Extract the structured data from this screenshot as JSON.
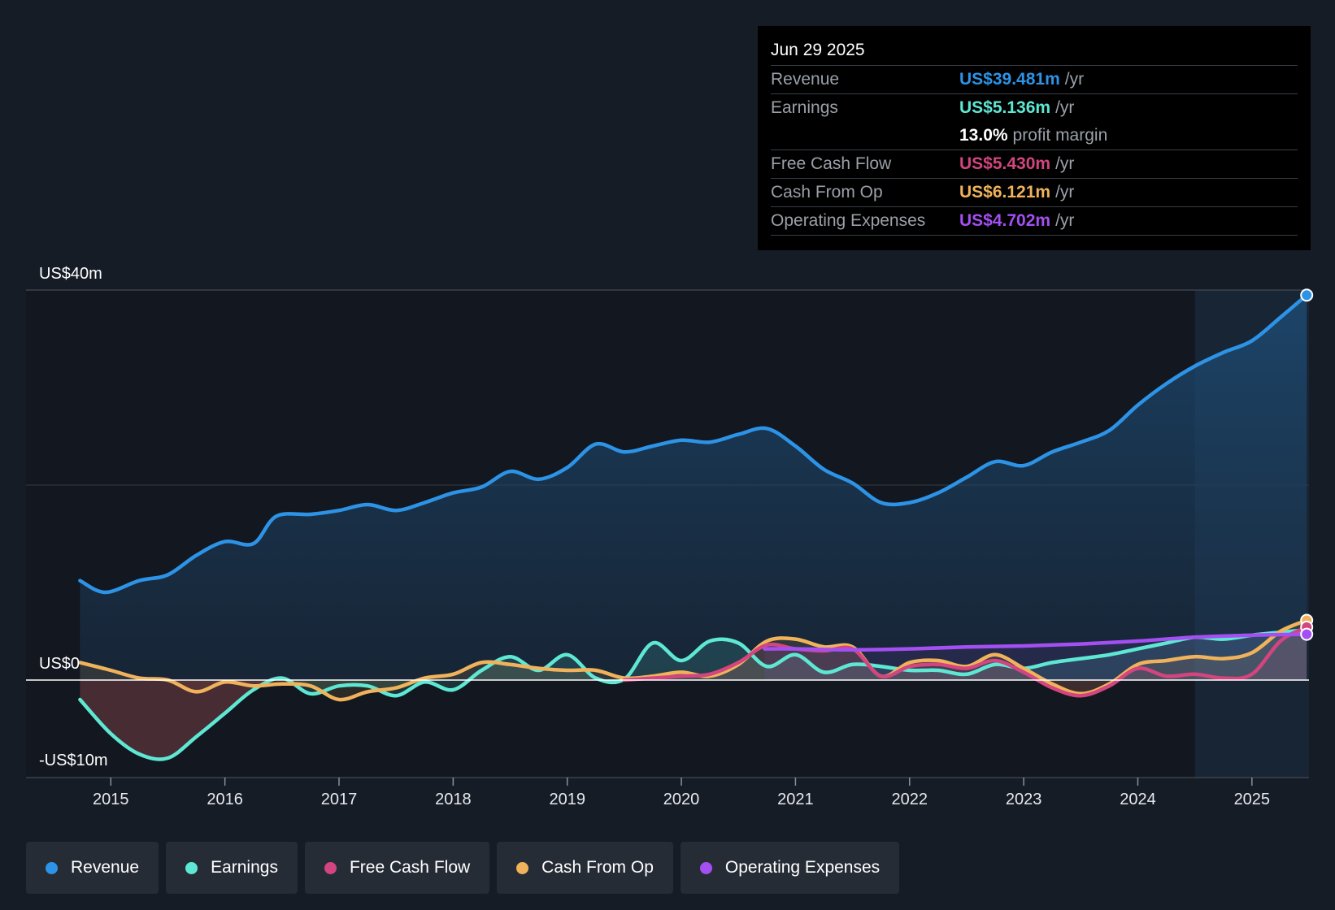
{
  "tooltip": {
    "date": "Jun 29 2025",
    "rows": {
      "revenue": {
        "label": "Revenue",
        "value": "US$39.481m",
        "unit": "/yr",
        "color": "#2d93e6"
      },
      "earnings": {
        "label": "Earnings",
        "value": "US$5.136m",
        "unit": "/yr",
        "color": "#5ee8d4"
      },
      "margin": {
        "value": "13.0%",
        "unit": "profit margin"
      },
      "fcf": {
        "label": "Free Cash Flow",
        "value": "US$5.430m",
        "unit": "/yr",
        "color": "#d2457f"
      },
      "cfo": {
        "label": "Cash From Op",
        "value": "US$6.121m",
        "unit": "/yr",
        "color": "#f0b35b"
      },
      "opex": {
        "label": "Operating Expenses",
        "value": "US$4.702m",
        "unit": "/yr",
        "color": "#a44ff2"
      }
    }
  },
  "legend": [
    {
      "label": "Revenue",
      "color": "#2d93e6"
    },
    {
      "label": "Earnings",
      "color": "#5ee8d4"
    },
    {
      "label": "Free Cash Flow",
      "color": "#d2457f"
    },
    {
      "label": "Cash From Op",
      "color": "#f0b35b"
    },
    {
      "label": "Operating Expenses",
      "color": "#a44ff2"
    }
  ],
  "chart_data": {
    "type": "line",
    "title": "",
    "y_tick_labels": [
      "US$40m",
      "US$0",
      "-US$10m"
    ],
    "ylim": [
      -10,
      40
    ],
    "xlim": [
      2014.72,
      2025.5
    ],
    "x_tick_labels": [
      "2015",
      "2016",
      "2017",
      "2018",
      "2019",
      "2020",
      "2021",
      "2022",
      "2023",
      "2024",
      "2025"
    ],
    "x_ticks": [
      2015,
      2016,
      2017,
      2018,
      2019,
      2020,
      2021,
      2022,
      2023,
      2024,
      2025
    ],
    "forecast_start": 2024.5,
    "grid": true,
    "legend_position": "bottom",
    "series": [
      {
        "name": "Revenue",
        "color": "#2d93e6",
        "points": [
          [
            2014.73,
            10.2
          ],
          [
            2014.95,
            9.0
          ],
          [
            2015.25,
            10.2
          ],
          [
            2015.5,
            10.8
          ],
          [
            2015.75,
            12.8
          ],
          [
            2016.0,
            14.2
          ],
          [
            2016.25,
            14.0
          ],
          [
            2016.45,
            16.8
          ],
          [
            2016.75,
            17.0
          ],
          [
            2017.0,
            17.4
          ],
          [
            2017.25,
            18.0
          ],
          [
            2017.5,
            17.4
          ],
          [
            2017.75,
            18.2
          ],
          [
            2018.0,
            19.2
          ],
          [
            2018.25,
            19.8
          ],
          [
            2018.5,
            21.4
          ],
          [
            2018.75,
            20.6
          ],
          [
            2019.0,
            21.8
          ],
          [
            2019.25,
            24.2
          ],
          [
            2019.5,
            23.4
          ],
          [
            2019.75,
            24.0
          ],
          [
            2020.0,
            24.6
          ],
          [
            2020.25,
            24.4
          ],
          [
            2020.5,
            25.2
          ],
          [
            2020.75,
            25.8
          ],
          [
            2021.0,
            24.0
          ],
          [
            2021.25,
            21.6
          ],
          [
            2021.5,
            20.2
          ],
          [
            2021.75,
            18.2
          ],
          [
            2022.0,
            18.2
          ],
          [
            2022.25,
            19.2
          ],
          [
            2022.5,
            20.8
          ],
          [
            2022.75,
            22.4
          ],
          [
            2023.0,
            22.0
          ],
          [
            2023.25,
            23.4
          ],
          [
            2023.5,
            24.4
          ],
          [
            2023.75,
            25.6
          ],
          [
            2024.0,
            28.2
          ],
          [
            2024.25,
            30.4
          ],
          [
            2024.5,
            32.2
          ],
          [
            2024.75,
            33.6
          ],
          [
            2025.0,
            34.8
          ],
          [
            2025.25,
            37.2
          ],
          [
            2025.48,
            39.481
          ]
        ]
      },
      {
        "name": "Earnings",
        "color": "#5ee8d4",
        "points": [
          [
            2014.73,
            -2.0
          ],
          [
            2015.0,
            -5.5
          ],
          [
            2015.25,
            -7.6
          ],
          [
            2015.5,
            -8.0
          ],
          [
            2015.75,
            -5.8
          ],
          [
            2016.0,
            -3.4
          ],
          [
            2016.25,
            -1.0
          ],
          [
            2016.5,
            0.2
          ],
          [
            2016.75,
            -1.4
          ],
          [
            2017.0,
            -0.6
          ],
          [
            2017.25,
            -0.6
          ],
          [
            2017.5,
            -1.6
          ],
          [
            2017.75,
            -0.2
          ],
          [
            2018.0,
            -1.0
          ],
          [
            2018.25,
            1.0
          ],
          [
            2018.5,
            2.4
          ],
          [
            2018.75,
            1.0
          ],
          [
            2019.0,
            2.6
          ],
          [
            2019.25,
            0.2
          ],
          [
            2019.5,
            0.1
          ],
          [
            2019.75,
            3.8
          ],
          [
            2020.0,
            2.0
          ],
          [
            2020.25,
            4.0
          ],
          [
            2020.5,
            3.8
          ],
          [
            2020.75,
            1.4
          ],
          [
            2021.0,
            2.6
          ],
          [
            2021.25,
            0.8
          ],
          [
            2021.5,
            1.6
          ],
          [
            2021.75,
            1.4
          ],
          [
            2022.0,
            1.0
          ],
          [
            2022.25,
            1.0
          ],
          [
            2022.5,
            0.6
          ],
          [
            2022.75,
            1.6
          ],
          [
            2023.0,
            1.2
          ],
          [
            2023.25,
            1.8
          ],
          [
            2023.5,
            2.2
          ],
          [
            2023.75,
            2.6
          ],
          [
            2024.0,
            3.2
          ],
          [
            2024.25,
            3.8
          ],
          [
            2024.5,
            4.4
          ],
          [
            2024.75,
            4.2
          ],
          [
            2025.0,
            4.6
          ],
          [
            2025.25,
            4.9
          ],
          [
            2025.48,
            5.136
          ]
        ]
      },
      {
        "name": "Free Cash Flow",
        "color": "#d2457f",
        "points": [
          [
            2019.5,
            0.0
          ],
          [
            2019.75,
            0.2
          ],
          [
            2020.0,
            0.4
          ],
          [
            2020.25,
            0.6
          ],
          [
            2020.5,
            1.8
          ],
          [
            2020.75,
            3.6
          ],
          [
            2021.0,
            3.2
          ],
          [
            2021.25,
            3.0
          ],
          [
            2021.5,
            3.2
          ],
          [
            2021.75,
            0.4
          ],
          [
            2022.0,
            1.4
          ],
          [
            2022.25,
            1.6
          ],
          [
            2022.5,
            1.2
          ],
          [
            2022.75,
            2.0
          ],
          [
            2023.0,
            0.8
          ],
          [
            2023.25,
            -0.8
          ],
          [
            2023.5,
            -1.6
          ],
          [
            2023.75,
            -0.6
          ],
          [
            2024.0,
            1.2
          ],
          [
            2024.25,
            0.4
          ],
          [
            2024.5,
            0.6
          ],
          [
            2024.75,
            0.2
          ],
          [
            2025.0,
            0.6
          ],
          [
            2025.25,
            4.0
          ],
          [
            2025.48,
            5.43
          ]
        ]
      },
      {
        "name": "Cash From Op",
        "color": "#f0b35b",
        "points": [
          [
            2014.73,
            1.8
          ],
          [
            2015.0,
            1.0
          ],
          [
            2015.25,
            0.2
          ],
          [
            2015.5,
            0.0
          ],
          [
            2015.75,
            -1.2
          ],
          [
            2016.0,
            -0.2
          ],
          [
            2016.25,
            -0.6
          ],
          [
            2016.5,
            -0.4
          ],
          [
            2016.75,
            -0.6
          ],
          [
            2017.0,
            -2.0
          ],
          [
            2017.25,
            -1.2
          ],
          [
            2017.5,
            -0.8
          ],
          [
            2017.75,
            0.2
          ],
          [
            2018.0,
            0.6
          ],
          [
            2018.25,
            1.8
          ],
          [
            2018.5,
            1.6
          ],
          [
            2018.75,
            1.2
          ],
          [
            2019.0,
            1.0
          ],
          [
            2019.25,
            1.0
          ],
          [
            2019.5,
            0.2
          ],
          [
            2019.75,
            0.4
          ],
          [
            2020.0,
            0.8
          ],
          [
            2020.25,
            0.4
          ],
          [
            2020.5,
            1.6
          ],
          [
            2020.75,
            4.0
          ],
          [
            2021.0,
            4.2
          ],
          [
            2021.25,
            3.4
          ],
          [
            2021.5,
            3.4
          ],
          [
            2021.75,
            0.4
          ],
          [
            2022.0,
            1.8
          ],
          [
            2022.25,
            2.0
          ],
          [
            2022.5,
            1.4
          ],
          [
            2022.75,
            2.6
          ],
          [
            2023.0,
            1.2
          ],
          [
            2023.25,
            -0.4
          ],
          [
            2023.5,
            -1.4
          ],
          [
            2023.75,
            -0.4
          ],
          [
            2024.0,
            1.6
          ],
          [
            2024.25,
            2.0
          ],
          [
            2024.5,
            2.4
          ],
          [
            2024.75,
            2.2
          ],
          [
            2025.0,
            2.8
          ],
          [
            2025.25,
            5.0
          ],
          [
            2025.48,
            6.121
          ]
        ]
      },
      {
        "name": "Operating Expenses",
        "color": "#a44ff2",
        "points": [
          [
            2020.73,
            3.2
          ],
          [
            2021.0,
            3.2
          ],
          [
            2021.5,
            3.1
          ],
          [
            2022.0,
            3.2
          ],
          [
            2022.5,
            3.4
          ],
          [
            2023.0,
            3.5
          ],
          [
            2023.5,
            3.7
          ],
          [
            2024.0,
            4.0
          ],
          [
            2024.5,
            4.4
          ],
          [
            2025.0,
            4.6
          ],
          [
            2025.48,
            4.702
          ]
        ]
      }
    ]
  }
}
